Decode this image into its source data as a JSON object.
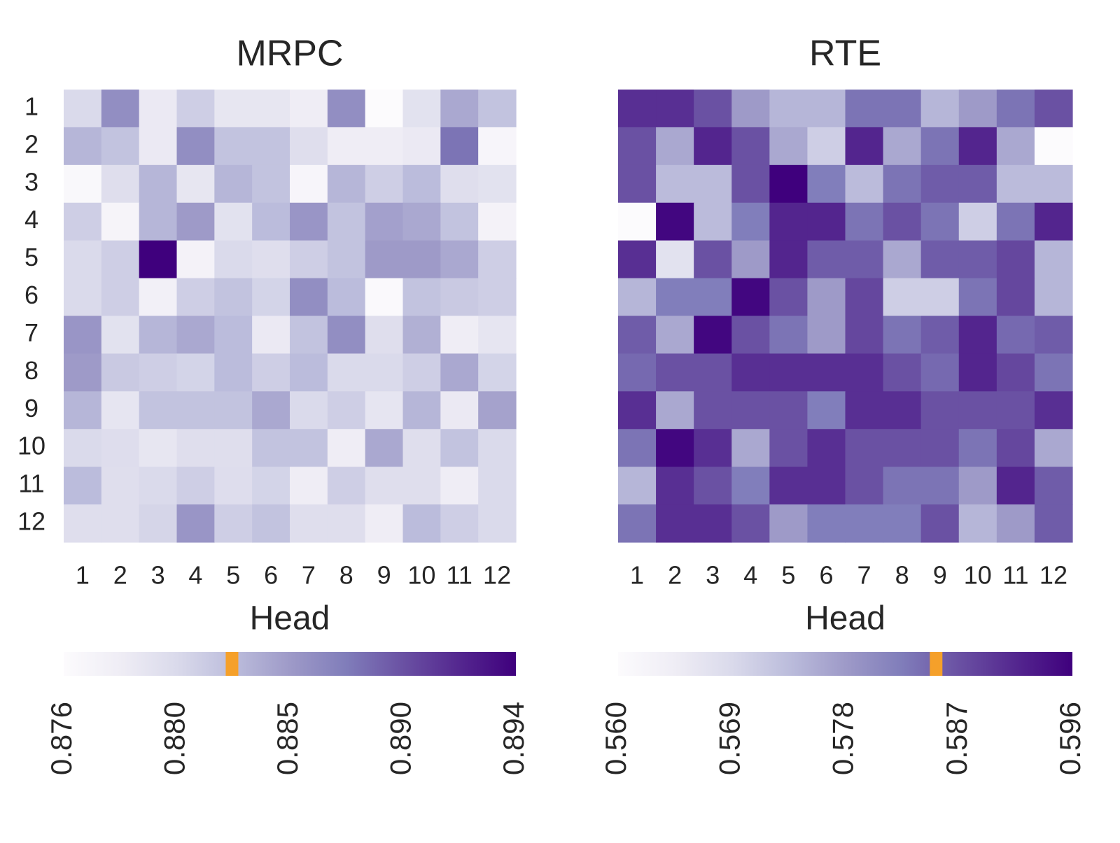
{
  "chart_data": [
    {
      "type": "heatmap",
      "title": "MRPC",
      "xlabel": "Head",
      "x_categories": [
        "1",
        "2",
        "3",
        "4",
        "5",
        "6",
        "7",
        "8",
        "9",
        "10",
        "11",
        "12"
      ],
      "y_categories": [
        "1",
        "2",
        "3",
        "4",
        "5",
        "6",
        "7",
        "8",
        "9",
        "10",
        "11",
        "12"
      ],
      "colors": [
        "#fcfbfd",
        "#efedf5",
        "#dadaeb",
        "#bcbddc",
        "#9e9ac8",
        "#807dba",
        "#6a51a3",
        "#54278f",
        "#3f007d"
      ],
      "zlim": [
        0.876,
        0.894
      ],
      "colorbar_ticks": [
        0.876,
        {
          "value": 0.8805,
          "label": "0.880"
        },
        0.885,
        {
          "value": 0.8895,
          "label": "0.890"
        },
        0.894
      ],
      "marker": {
        "value": 0.8827,
        "color": "#f5a02a"
      },
      "values": [
        [
          0.8805,
          0.8859,
          0.8787,
          0.8814,
          0.8791,
          0.8791,
          0.8782,
          0.8859,
          0.876,
          0.8796,
          0.8841,
          0.8823
        ],
        [
          0.8832,
          0.8823,
          0.8787,
          0.8859,
          0.8823,
          0.8823,
          0.88,
          0.8782,
          0.8782,
          0.8787,
          0.8877,
          0.8769
        ],
        [
          0.8765,
          0.88,
          0.8832,
          0.8791,
          0.8832,
          0.8823,
          0.8769,
          0.8832,
          0.8814,
          0.8828,
          0.88,
          0.8796
        ],
        [
          0.8814,
          0.8771,
          0.8832,
          0.885,
          0.8796,
          0.8828,
          0.8854,
          0.8823,
          0.8846,
          0.8841,
          0.8823,
          0.8774
        ],
        [
          0.8805,
          0.8814,
          0.894,
          0.8774,
          0.8805,
          0.88,
          0.8814,
          0.8823,
          0.885,
          0.885,
          0.8841,
          0.8814
        ],
        [
          0.8805,
          0.8814,
          0.8778,
          0.8814,
          0.8823,
          0.881,
          0.8859,
          0.8828,
          0.8764,
          0.8823,
          0.8818,
          0.8814
        ],
        [
          0.8854,
          0.8796,
          0.8832,
          0.8841,
          0.8828,
          0.8787,
          0.8823,
          0.8859,
          0.88,
          0.8836,
          0.8783,
          0.8792
        ],
        [
          0.885,
          0.8818,
          0.8814,
          0.881,
          0.8828,
          0.8814,
          0.8828,
          0.8805,
          0.8805,
          0.8814,
          0.8841,
          0.881
        ],
        [
          0.8832,
          0.8792,
          0.8823,
          0.8823,
          0.8823,
          0.8841,
          0.8805,
          0.8814,
          0.8792,
          0.8832,
          0.8787,
          0.8845
        ],
        [
          0.8805,
          0.8801,
          0.8791,
          0.88,
          0.88,
          0.8823,
          0.8823,
          0.8783,
          0.8841,
          0.88,
          0.8823,
          0.8805
        ],
        [
          0.8828,
          0.88,
          0.8805,
          0.8814,
          0.8801,
          0.881,
          0.8783,
          0.8814,
          0.88,
          0.88,
          0.8783,
          0.8805
        ],
        [
          0.88,
          0.88,
          0.8809,
          0.8854,
          0.8814,
          0.8823,
          0.88,
          0.88,
          0.8782,
          0.8828,
          0.8814,
          0.8805
        ]
      ]
    },
    {
      "type": "heatmap",
      "title": "RTE",
      "xlabel": "Head",
      "x_categories": [
        "1",
        "2",
        "3",
        "4",
        "5",
        "6",
        "7",
        "8",
        "9",
        "10",
        "11",
        "12"
      ],
      "colors": [
        "#fcfbfd",
        "#efedf5",
        "#dadaeb",
        "#bcbddc",
        "#9e9ac8",
        "#807dba",
        "#6a51a3",
        "#54278f",
        "#3f007d"
      ],
      "zlim": [
        0.56,
        0.596
      ],
      "colorbar_ticks": [
        {
          "value": 0.56,
          "label": "0.560"
        },
        0.569,
        0.578,
        0.587,
        0.596
      ],
      "marker": {
        "value": 0.5852,
        "color": "#f5a02a"
      },
      "values": [
        [
          0.5906,
          0.5906,
          0.587,
          0.578,
          0.5744,
          0.5744,
          0.5834,
          0.5834,
          0.5744,
          0.578,
          0.5834,
          0.587
        ],
        [
          0.587,
          0.5762,
          0.5917,
          0.587,
          0.5762,
          0.5708,
          0.5917,
          0.5762,
          0.5834,
          0.5917,
          0.5762,
          0.56
        ],
        [
          0.587,
          0.5737,
          0.5737,
          0.587,
          0.596,
          0.5823,
          0.5737,
          0.5834,
          0.5859,
          0.5859,
          0.5737,
          0.5737
        ],
        [
          0.56,
          0.5953,
          0.5737,
          0.5823,
          0.5917,
          0.5917,
          0.5834,
          0.587,
          0.5834,
          0.5708,
          0.5834,
          0.5917
        ],
        [
          0.5906,
          0.5672,
          0.587,
          0.578,
          0.5917,
          0.5859,
          0.5859,
          0.5762,
          0.5859,
          0.5859,
          0.5881,
          0.5744
        ],
        [
          0.5744,
          0.5823,
          0.5823,
          0.5953,
          0.587,
          0.578,
          0.5881,
          0.5708,
          0.5708,
          0.5834,
          0.5881,
          0.5744
        ],
        [
          0.5859,
          0.5762,
          0.5953,
          0.587,
          0.5834,
          0.578,
          0.5881,
          0.5834,
          0.5859,
          0.5917,
          0.5845,
          0.5859
        ],
        [
          0.5845,
          0.587,
          0.587,
          0.5906,
          0.5906,
          0.5906,
          0.5906,
          0.587,
          0.5845,
          0.5917,
          0.5881,
          0.5834
        ],
        [
          0.5906,
          0.5762,
          0.587,
          0.587,
          0.587,
          0.5823,
          0.5906,
          0.5906,
          0.587,
          0.587,
          0.587,
          0.5906
        ],
        [
          0.5834,
          0.5953,
          0.5906,
          0.5762,
          0.587,
          0.5906,
          0.587,
          0.587,
          0.587,
          0.5834,
          0.5881,
          0.5762
        ],
        [
          0.5744,
          0.5906,
          0.587,
          0.5823,
          0.5906,
          0.5906,
          0.587,
          0.5834,
          0.5834,
          0.578,
          0.5917,
          0.5859
        ],
        [
          0.5834,
          0.5906,
          0.5906,
          0.587,
          0.578,
          0.5823,
          0.5823,
          0.5823,
          0.587,
          0.5744,
          0.578,
          0.5859
        ]
      ]
    }
  ]
}
